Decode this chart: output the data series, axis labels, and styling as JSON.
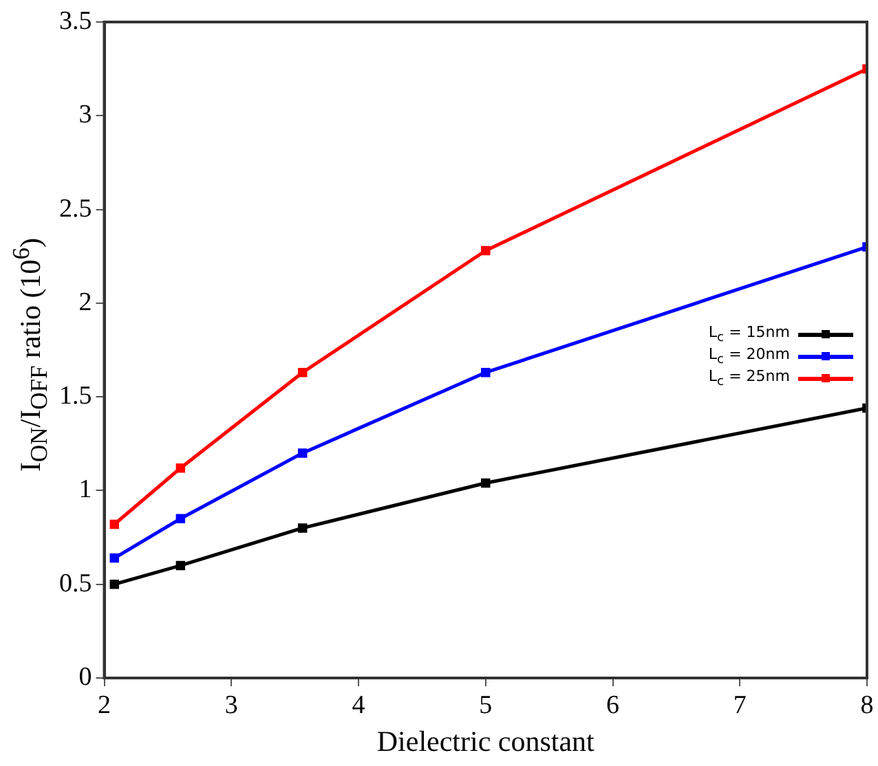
{
  "chart_data": {
    "type": "line",
    "xlabel": "Dielectric constant",
    "ylabel": "I$_{ON}$/I$_{OFF}$ ratio (10$^{6}$)",
    "x": [
      2.08,
      2.6,
      3.56,
      5,
      8
    ],
    "series": [
      {
        "name": "L$_{c}$ = 15nm",
        "color": "#000000",
        "values": [
          0.5,
          0.6,
          0.8,
          1.04,
          1.44
        ]
      },
      {
        "name": "L$_{c}$ = 20nm",
        "color": "#0000ff",
        "values": [
          0.64,
          0.85,
          1.2,
          1.63,
          2.3
        ]
      },
      {
        "name": "L$_{c}$ = 25nm",
        "color": "#ff0000",
        "values": [
          0.82,
          1.12,
          1.63,
          2.28,
          3.25
        ]
      }
    ],
    "xlim": [
      2,
      8
    ],
    "xticks": [
      2,
      3,
      4,
      5,
      6,
      7,
      8
    ],
    "ylim": [
      0,
      3.5
    ],
    "yticks": [
      0,
      0.5,
      1,
      1.5,
      2,
      2.5,
      3,
      3.5
    ],
    "grid": false,
    "legend": "right",
    "marker": "square",
    "line_style": "solid"
  }
}
